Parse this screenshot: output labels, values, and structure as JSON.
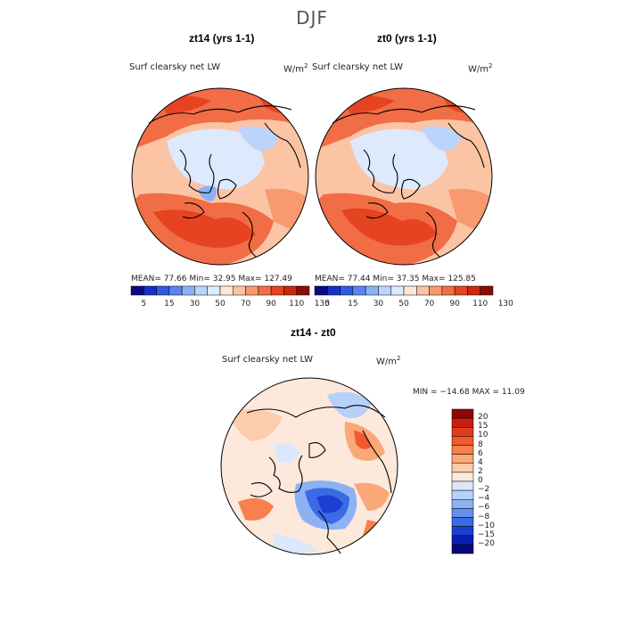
{
  "page_title": "DJF",
  "panels": [
    {
      "title": "zt14 (yrs 1-1)",
      "field_label": "Surf clearsky net LW",
      "units": "W/m",
      "units_exp": "2",
      "stats_line": "MEAN=  77.66   Min=   32.95   Max= 127.49",
      "colorbar": {
        "ticks": [
          "5",
          "15",
          "30",
          "50",
          "70",
          "90",
          "110",
          "130"
        ],
        "colors": [
          "#0a0a85",
          "#1530c8",
          "#2f5ae6",
          "#5a82f0",
          "#8cb0f6",
          "#bcd4fa",
          "#dde9fd",
          "#fde6d6",
          "#fbc4a5",
          "#f8996f",
          "#f16d45",
          "#e64322",
          "#c9280f",
          "#8a0d05"
        ]
      }
    },
    {
      "title": "zt0 (yrs 1-1)",
      "field_label": "Surf clearsky net LW",
      "units": "W/m",
      "units_exp": "2",
      "stats_line": "MEAN=  77.44   Min=   37.35   Max= 125.85",
      "colorbar": {
        "ticks": [
          "5",
          "15",
          "30",
          "50",
          "70",
          "90",
          "110",
          "130"
        ],
        "colors": [
          "#0a0a85",
          "#1530c8",
          "#2f5ae6",
          "#5a82f0",
          "#8cb0f6",
          "#bcd4fa",
          "#dde9fd",
          "#fde6d6",
          "#fbc4a5",
          "#f8996f",
          "#f16d45",
          "#e64322",
          "#c9280f",
          "#8a0d05"
        ]
      }
    },
    {
      "title": "zt14 - zt0",
      "field_label": "Surf clearsky net LW",
      "units": "W/m",
      "units_exp": "2",
      "stats_line": "MIN = −14.68 MAX =  11.09",
      "colorbar": {
        "ticks": [
          "20",
          "15",
          "10",
          "8",
          "6",
          "4",
          "2",
          "0",
          "−2",
          "−4",
          "−6",
          "−8",
          "−10",
          "−15",
          "−20"
        ],
        "colors": [
          "#8b0a05",
          "#c61f0e",
          "#e23b1e",
          "#f2592f",
          "#f8804f",
          "#fba878",
          "#fdcbad",
          "#fde8dc",
          "#dbe8fb",
          "#b7d0f8",
          "#8db2f3",
          "#6390ee",
          "#3b6ae6",
          "#1c3fd2",
          "#0c1eb0",
          "#05087e"
        ]
      }
    }
  ],
  "chart_data": [
    {
      "type": "heatmap",
      "title": "zt14 (yrs 1-1)",
      "subtitle": "Surf clearsky net LW (W/m2)",
      "projection": "north polar stereographic",
      "mean": 77.66,
      "min": 32.95,
      "max": 127.49,
      "levels": [
        5,
        15,
        30,
        50,
        70,
        90,
        110,
        130
      ]
    },
    {
      "type": "heatmap",
      "title": "zt0 (yrs 1-1)",
      "subtitle": "Surf clearsky net LW (W/m2)",
      "projection": "north polar stereographic",
      "mean": 77.44,
      "min": 37.35,
      "max": 125.85,
      "levels": [
        5,
        15,
        30,
        50,
        70,
        90,
        110,
        130
      ]
    },
    {
      "type": "heatmap",
      "title": "zt14 - zt0",
      "subtitle": "Surf clearsky net LW (W/m2)",
      "projection": "north polar stereographic",
      "min": -14.68,
      "max": 11.09,
      "levels": [
        -20,
        -15,
        -10,
        -8,
        -6,
        -4,
        -2,
        0,
        2,
        4,
        6,
        8,
        10,
        15,
        20
      ]
    }
  ],
  "colors": {
    "coast": "#000000",
    "warm_main": "#f16d45",
    "warm_light": "#fbc4a5",
    "cool_light": "#d6e6fb",
    "cool_main": "#8cb0f6",
    "diff_blue": "#1c3fd2"
  }
}
